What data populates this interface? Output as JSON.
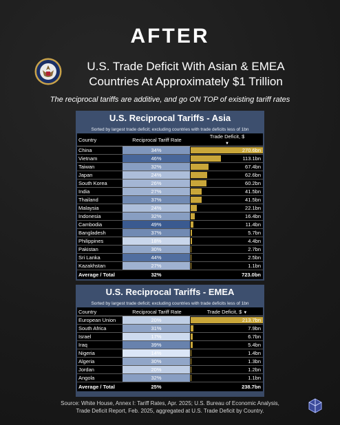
{
  "header": {
    "title": "AFTER",
    "headline_line1": "U.S. Trade Deficit With Asian & EMEA",
    "headline_line2": "Countries At Approximately $1 Trillion",
    "subtitle": "The reciprocal tariffs are additive, and go ON TOP of existing tariff rates"
  },
  "columns": {
    "country": "Country",
    "rate": "Reciprocal Tariff Rate",
    "deficit": "Trade Deficit, $"
  },
  "asia": {
    "title": "U.S. Reciprocal Tariffs - Asia",
    "note": "Sorted by largest trade deficit; excluding countries with trade deficits less of 1bn",
    "rows": [
      {
        "country": "China",
        "rate": "34%",
        "deficit": "270.6bn",
        "value": 270.6
      },
      {
        "country": "Vietnam",
        "rate": "46%",
        "deficit": "113.1bn",
        "value": 113.1
      },
      {
        "country": "Taiwan",
        "rate": "32%",
        "deficit": "67.4bn",
        "value": 67.4
      },
      {
        "country": "Japan",
        "rate": "24%",
        "deficit": "62.6bn",
        "value": 62.6
      },
      {
        "country": "South Korea",
        "rate": "26%",
        "deficit": "60.2bn",
        "value": 60.2
      },
      {
        "country": "India",
        "rate": "27%",
        "deficit": "41.5bn",
        "value": 41.5
      },
      {
        "country": "Thailand",
        "rate": "37%",
        "deficit": "41.5bn",
        "value": 41.5
      },
      {
        "country": "Malaysia",
        "rate": "24%",
        "deficit": "22.1bn",
        "value": 22.1
      },
      {
        "country": "Indonesia",
        "rate": "32%",
        "deficit": "16.4bn",
        "value": 16.4
      },
      {
        "country": "Cambodia",
        "rate": "49%",
        "deficit": "11.4bn",
        "value": 11.4
      },
      {
        "country": "Bangladesh",
        "rate": "37%",
        "deficit": "5.7bn",
        "value": 5.7
      },
      {
        "country": "Philippines",
        "rate": "18%",
        "deficit": "4.4bn",
        "value": 4.4
      },
      {
        "country": "Pakistan",
        "rate": "30%",
        "deficit": "2.7bn",
        "value": 2.7
      },
      {
        "country": "Sri Lanka",
        "rate": "44%",
        "deficit": "2.5bn",
        "value": 2.5
      },
      {
        "country": "Kazakhstan",
        "rate": "27%",
        "deficit": "1.1bn",
        "value": 1.1
      }
    ],
    "total": {
      "label": "Average / Total",
      "rate": "32%",
      "deficit": "723.0bn"
    }
  },
  "emea": {
    "title": "U.S. Reciprocal Tariffs - EMEA",
    "note": "Sorted by largest trade deficit; excluding countries with trade deficits less of 1bn",
    "rows": [
      {
        "country": "European Union",
        "rate": "20%",
        "deficit": "213.7bn",
        "value": 213.7
      },
      {
        "country": "South Africa",
        "rate": "31%",
        "deficit": "7.9bn",
        "value": 7.9
      },
      {
        "country": "Israel",
        "rate": "17%",
        "deficit": "6.7bn",
        "value": 6.7
      },
      {
        "country": "Iraq",
        "rate": "39%",
        "deficit": "5.4bn",
        "value": 5.4
      },
      {
        "country": "Nigeria",
        "rate": "14%",
        "deficit": "1.4bn",
        "value": 1.4
      },
      {
        "country": "Algeria",
        "rate": "30%",
        "deficit": "1.3bn",
        "value": 1.3
      },
      {
        "country": "Jordan",
        "rate": "20%",
        "deficit": "1.2bn",
        "value": 1.2
      },
      {
        "country": "Angola",
        "rate": "32%",
        "deficit": "1.1bn",
        "value": 1.1
      }
    ],
    "total": {
      "label": "Average / Total",
      "rate": "25%",
      "deficit": "238.7bn"
    }
  },
  "source": {
    "line1": "Source: White House, Annex I: Tariff Rates, Apr. 2025; U.S. Bureau of Economic Analysis,",
    "line2": "Trade Deficit Report, Feb. 2025, aggregated at U.S. Trade Deficit by Country."
  },
  "colors": {
    "bar": "#c9a63a",
    "panel": "#3d4f6e",
    "rate_dark": "#3a5a90",
    "rate_light": "#dbe6f7"
  },
  "icons": {
    "seal": "presidential-seal-icon",
    "logo": "cube-logo-icon"
  }
}
